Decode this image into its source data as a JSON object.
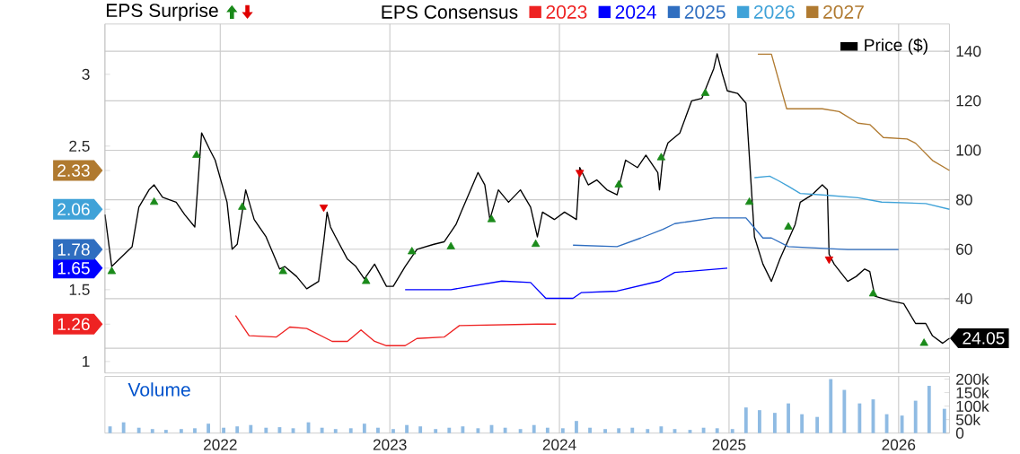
{
  "chart_data": [
    {
      "type": "line",
      "legend": "top",
      "legend_title": "EPS Consensus",
      "grid": true,
      "tick_labels": "y",
      "xlim": [
        2021.32,
        2026.3
      ],
      "xticks": [
        2022,
        2023,
        2024,
        2025,
        2026
      ],
      "ylim": [
        0.92,
        3.35
      ],
      "yticks": [
        1,
        1.26,
        1.5,
        1.65,
        1.78,
        2.06,
        2.33,
        2.5,
        3
      ],
      "y2lim": [
        10,
        151
      ],
      "y2ticks": [
        {
          "value": 20,
          "label": null
        },
        40,
        60,
        80,
        100,
        120,
        140
      ],
      "annotations": [
        "EPS Surprise"
      ],
      "series": [
        {
          "name": "2023",
          "color": "#ee2222",
          "axis": "y",
          "x": [
            2022.09,
            2022.17,
            2022.33,
            2022.41,
            2022.51,
            2022.66,
            2022.75,
            2022.83,
            2022.91,
            2022.98,
            2023.09,
            2023.16,
            2023.32,
            2023.41,
            2023.87,
            2023.98
          ],
          "values": [
            1.32,
            1.18,
            1.17,
            1.24,
            1.23,
            1.14,
            1.14,
            1.22,
            1.14,
            1.11,
            1.11,
            1.16,
            1.17,
            1.25,
            1.26,
            1.26
          ]
        },
        {
          "name": "2024",
          "color": "#0000ff",
          "axis": "y",
          "x": [
            2023.09,
            2023.36,
            2023.66,
            2023.83,
            2023.92,
            2024.08,
            2024.13,
            2024.34,
            2024.59,
            2024.68,
            2024.99
          ],
          "values": [
            1.5,
            1.5,
            1.56,
            1.55,
            1.44,
            1.44,
            1.48,
            1.49,
            1.56,
            1.62,
            1.65
          ]
        },
        {
          "name": "2025",
          "color": "#2f6ec0",
          "axis": "y",
          "x": [
            2024.08,
            2024.34,
            2024.48,
            2024.61,
            2024.68,
            2024.91,
            2025.1,
            2025.15,
            2025.2,
            2025.25,
            2025.35,
            2025.7,
            2026.0
          ],
          "values": [
            1.81,
            1.8,
            1.86,
            1.92,
            1.96,
            2.0,
            2.0,
            1.93,
            1.86,
            1.86,
            1.8,
            1.78,
            1.78
          ]
        },
        {
          "name": "2026",
          "color": "#3fa2d8",
          "axis": "y",
          "x": [
            2025.15,
            2025.24,
            2025.29,
            2025.35,
            2025.42,
            2025.55,
            2025.76,
            2025.9,
            2026.16,
            2026.3
          ],
          "values": [
            2.28,
            2.29,
            2.26,
            2.22,
            2.17,
            2.16,
            2.14,
            2.11,
            2.1,
            2.06
          ]
        },
        {
          "name": "2027",
          "color": "#b07a30",
          "axis": "y",
          "x": [
            2025.17,
            2025.25,
            2025.34,
            2025.55,
            2025.65,
            2025.76,
            2025.83,
            2025.91,
            2026.05,
            2026.1,
            2026.2,
            2026.3
          ],
          "values": [
            3.14,
            3.14,
            2.76,
            2.76,
            2.74,
            2.66,
            2.65,
            2.56,
            2.55,
            2.52,
            2.4,
            2.33
          ]
        },
        {
          "name": "Price ($)",
          "color": "#000000",
          "axis": "y2",
          "x": [
            2021.32,
            2021.36,
            2021.48,
            2021.52,
            2021.58,
            2021.61,
            2021.66,
            2021.74,
            2021.79,
            2021.85,
            2021.89,
            2021.94,
            2021.97,
            2022.04,
            2022.07,
            2022.1,
            2022.15,
            2022.2,
            2022.24,
            2022.27,
            2022.35,
            2022.38,
            2022.45,
            2022.51,
            2022.58,
            2022.61,
            2022.63,
            2022.65,
            2022.68,
            2022.75,
            2022.8,
            2022.85,
            2022.91,
            2022.98,
            2023.02,
            2023.09,
            2023.16,
            2023.26,
            2023.32,
            2023.39,
            2023.42,
            2023.52,
            2023.56,
            2023.59,
            2023.64,
            2023.7,
            2023.77,
            2023.83,
            2023.87,
            2023.9,
            2023.97,
            2024.03,
            2024.1,
            2024.12,
            2024.17,
            2024.22,
            2024.28,
            2024.34,
            2024.39,
            2024.46,
            2024.51,
            2024.58,
            2024.59,
            2024.61,
            2024.64,
            2024.71,
            2024.78,
            2024.84,
            2024.91,
            2024.93,
            2024.96,
            2024.99,
            2025.05,
            2025.1,
            2025.15,
            2025.2,
            2025.25,
            2025.3,
            2025.39,
            2025.42,
            2025.49,
            2025.55,
            2025.58,
            2025.59,
            2025.62,
            2025.7,
            2025.75,
            2025.8,
            2025.83,
            2025.86,
            2025.96,
            2026.03,
            2026.1,
            2026.16,
            2026.2,
            2026.26,
            2026.3
          ],
          "values": [
            74,
            53,
            61,
            77,
            84,
            86,
            81,
            79,
            74,
            69,
            107,
            100,
            96,
            79,
            60,
            62,
            84,
            72,
            68,
            65,
            52,
            53,
            49,
            44,
            47,
            63,
            75,
            69,
            65,
            56,
            53,
            48,
            54,
            45,
            45,
            53,
            60,
            62,
            63,
            70,
            75,
            91,
            86,
            72,
            84,
            79,
            84,
            77,
            65,
            75,
            72,
            75,
            72,
            93,
            86,
            88,
            84,
            82,
            96,
            93,
            98,
            91,
            84,
            97,
            103,
            107,
            120,
            121,
            133,
            139,
            131,
            124,
            123,
            119,
            65,
            54,
            47,
            56,
            70,
            79,
            82,
            86,
            84,
            58,
            54,
            47,
            49,
            52,
            51,
            41,
            39,
            38,
            30,
            30,
            25,
            22,
            24.05
          ],
          "value_labels": [
            null,
            null,
            null,
            null,
            null,
            null,
            null,
            null,
            null,
            null,
            null,
            null,
            null,
            null,
            null,
            null,
            null,
            null,
            null,
            null,
            null,
            null,
            null,
            null,
            null,
            null,
            null,
            null,
            null,
            null,
            null,
            null,
            null,
            null,
            null,
            null,
            null,
            null,
            null,
            null,
            null,
            null,
            null,
            null,
            null,
            null,
            null,
            null,
            null,
            null,
            null,
            null,
            null,
            null,
            null,
            null,
            null,
            null,
            null,
            null,
            null,
            null,
            null,
            null,
            null,
            null,
            null,
            null,
            null,
            null,
            null,
            null,
            null,
            null,
            null,
            null,
            null,
            null,
            null,
            null,
            null,
            null,
            null,
            null,
            null,
            null,
            null,
            null,
            null,
            null,
            null,
            null,
            null,
            null,
            null,
            null,
            "24.05"
          ]
        },
        {
          "type": "scatter",
          "marker": "triangle",
          "color": "#1a8a1a",
          "axis": "y2",
          "x": [
            2021.36,
            2021.61,
            2021.86,
            2022.13,
            2022.37,
            2022.86,
            2023.13,
            2023.36,
            2023.6,
            2023.86,
            2024.35,
            2024.6,
            2024.86,
            2025.12,
            2025.35,
            2025.85,
            2026.15
          ],
          "values": [
            51,
            79,
            98,
            77,
            51,
            47,
            59,
            61,
            72,
            62,
            86,
            97,
            123,
            79,
            69,
            42,
            22
          ]
        },
        {
          "type": "scatter",
          "marker": "triangle",
          "color": "#e00000",
          "axis": "y2",
          "x": [
            2022.61,
            2024.12,
            2025.59
          ],
          "values": [
            77,
            91,
            56
          ]
        }
      ]
    },
    {
      "type": "bar",
      "title": "Volume",
      "color": "#8fbbe3",
      "grid": "x",
      "xlim": [
        2021.32,
        2026.3
      ],
      "xticks": [
        2022,
        2023,
        2024,
        2025,
        2026
      ],
      "ylim": [
        0,
        210000
      ],
      "yticks": [
        0,
        {
          "value": 50000,
          "label": "50k"
        },
        {
          "value": 100000,
          "label": "100k"
        },
        {
          "value": 150000,
          "label": "150k"
        },
        {
          "value": 200000,
          "label": "200k"
        }
      ],
      "x": [
        2021.35,
        2021.43,
        2021.52,
        2021.6,
        2021.68,
        2021.77,
        2021.85,
        2021.93,
        2022.02,
        2022.1,
        2022.18,
        2022.27,
        2022.35,
        2022.43,
        2022.52,
        2022.6,
        2022.68,
        2022.77,
        2022.85,
        2022.93,
        2023.02,
        2023.1,
        2023.18,
        2023.27,
        2023.35,
        2023.43,
        2023.52,
        2023.6,
        2023.68,
        2023.77,
        2023.85,
        2023.93,
        2024.02,
        2024.1,
        2024.18,
        2024.27,
        2024.35,
        2024.43,
        2024.52,
        2024.6,
        2024.68,
        2024.77,
        2024.85,
        2024.93,
        2025.02,
        2025.1,
        2025.18,
        2025.27,
        2025.35,
        2025.43,
        2025.52,
        2025.6,
        2025.68,
        2025.77,
        2025.85,
        2025.93,
        2026.02,
        2026.1,
        2026.18,
        2026.27
      ],
      "values": [
        25000,
        40000,
        20000,
        15000,
        12000,
        15000,
        18000,
        35000,
        20000,
        25000,
        30000,
        20000,
        22000,
        18000,
        40000,
        20000,
        15000,
        18000,
        35000,
        20000,
        15000,
        30000,
        25000,
        15000,
        20000,
        25000,
        18000,
        30000,
        20000,
        15000,
        30000,
        20000,
        18000,
        45000,
        20000,
        15000,
        18000,
        20000,
        15000,
        25000,
        15000,
        12000,
        20000,
        18000,
        15000,
        95000,
        85000,
        75000,
        110000,
        70000,
        60000,
        200000,
        160000,
        110000,
        125000,
        70000,
        65000,
        120000,
        175000,
        90000
      ]
    }
  ]
}
